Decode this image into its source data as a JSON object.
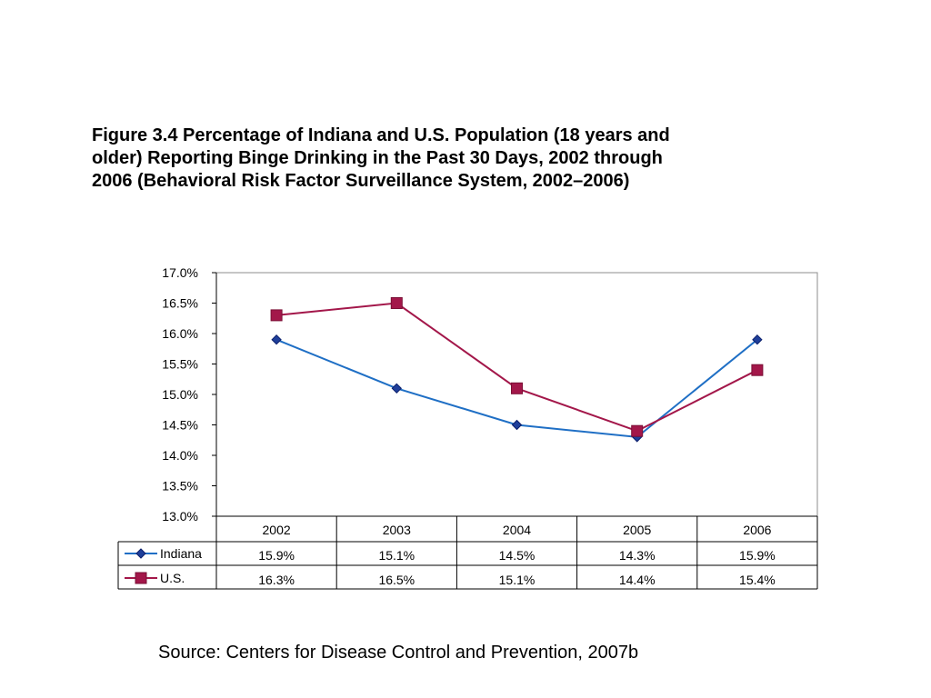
{
  "figure": {
    "title_lines": [
      "Figure 3.4 Percentage of Indiana and U.S. Population (18 years and",
      "older) Reporting Binge Drinking in the Past 30 Days, 2002 through",
      "2006 (Behavioral Risk Factor Surveillance System, 2002–2006)"
    ],
    "source": "Source: Centers for Disease Control and Prevention, 2007b"
  },
  "chart_data": {
    "type": "line",
    "title": "Figure 3.4 Percentage of Indiana and U.S. Population (18 years and older) Reporting Binge Drinking in the Past 30 Days, 2002 through 2006 (Behavioral Risk Factor Surveillance System, 2002–2006)",
    "categories": [
      "2002",
      "2003",
      "2004",
      "2005",
      "2006"
    ],
    "series": [
      {
        "name": "Indiana",
        "values": [
          15.9,
          15.1,
          14.5,
          14.3,
          15.9
        ],
        "labels": [
          "15.9%",
          "15.1%",
          "14.5%",
          "14.3%",
          "15.9%"
        ],
        "color": "#1f6fc5",
        "marker": "diamond"
      },
      {
        "name": "U.S.",
        "values": [
          16.3,
          16.5,
          15.1,
          14.4,
          15.4
        ],
        "labels": [
          "16.3%",
          "16.5%",
          "15.1%",
          "14.4%",
          "15.4%"
        ],
        "color": "#a3174a",
        "marker": "square"
      }
    ],
    "ylim": [
      13.0,
      17.0
    ],
    "yticks": [
      13.0,
      13.5,
      14.0,
      14.5,
      15.0,
      15.5,
      16.0,
      16.5,
      17.0
    ],
    "ytick_labels": [
      "13.0%",
      "13.5%",
      "14.0%",
      "14.5%",
      "15.0%",
      "15.5%",
      "16.0%",
      "16.5%",
      "17.0%"
    ],
    "grid": false,
    "legend": "data-table-below"
  }
}
